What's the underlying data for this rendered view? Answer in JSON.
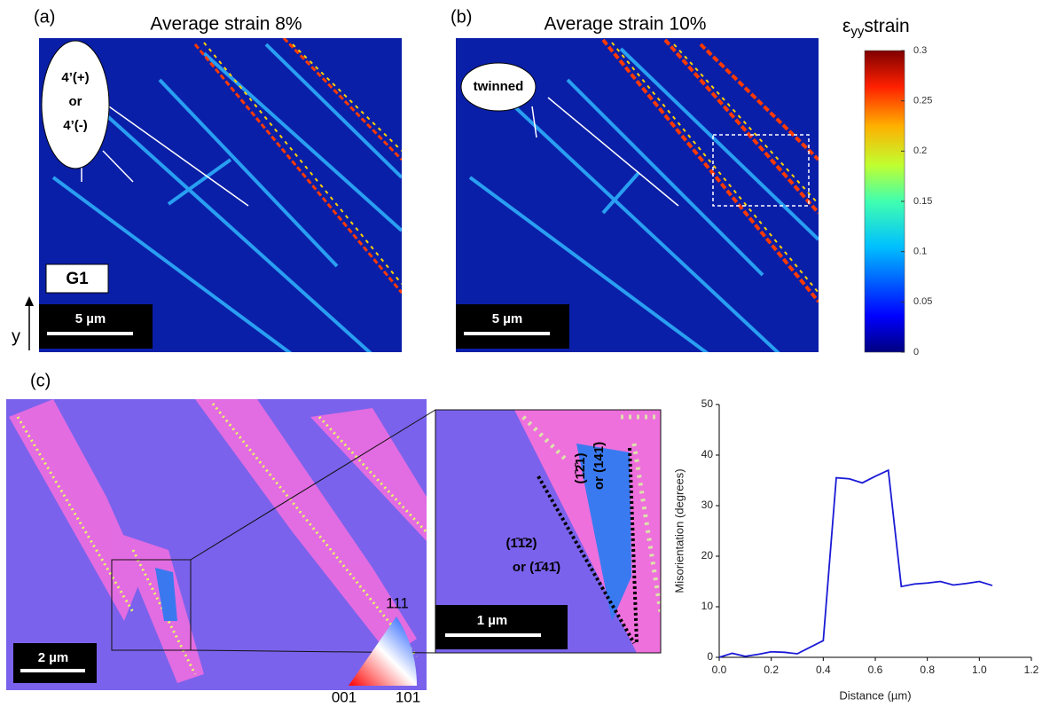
{
  "panels": {
    "a": {
      "label": "(a)",
      "title": "Average strain 8%",
      "callout": [
        "4’(+)",
        "or",
        "4’(-)"
      ],
      "grain": "G1",
      "scale": "5 µm",
      "axis": "y"
    },
    "b": {
      "label": "(b)",
      "title": "Average strain 10%",
      "callout": "twinned",
      "scale": "5 µm"
    },
    "colorbar": {
      "symbol": "ε",
      "subscript": "yy",
      "label": "strain",
      "lim": [
        0,
        0.3
      ],
      "ticks": [
        0,
        0.05,
        0.1,
        0.15,
        0.2,
        0.25,
        0.3
      ]
    },
    "c": {
      "label": "(c)",
      "scale": "2 µm",
      "inset_scale": "1 µm",
      "ipf": [
        "111",
        "001",
        "101"
      ],
      "planes": [
        [
          "(1̄2̄1)",
          "or (141̄)"
        ],
        [
          "(1̄1̄2)",
          "or (1̄41̄)"
        ]
      ]
    }
  },
  "chart_data": {
    "type": "line",
    "xlabel": "Distance (µm)",
    "ylabel": "Misorientation (degrees)",
    "x": [
      0,
      0.05,
      0.1,
      0.15,
      0.2,
      0.25,
      0.3,
      0.35,
      0.4,
      0.45,
      0.5,
      0.55,
      0.6,
      0.65,
      0.7,
      0.75,
      0.8,
      0.85,
      0.9,
      0.95,
      1.0,
      1.05
    ],
    "values": [
      0,
      0.8,
      0.2,
      0.6,
      1.1,
      1.0,
      0.7,
      2,
      3.3,
      35.5,
      35.3,
      34.5,
      35.8,
      37,
      14,
      14.5,
      14.7,
      15,
      14.3,
      14.6,
      15,
      14.2
    ],
    "color": "#1a1ad6",
    "xlim": [
      0,
      1.2
    ],
    "xticks": [
      {
        "value": 0,
        "label": "0.0"
      },
      0.2,
      0.4,
      0.6,
      0.8,
      {
        "value": 1,
        "label": "1.0"
      },
      1.2
    ],
    "ylim": [
      0,
      50
    ],
    "yticks": [
      0,
      10,
      20,
      30,
      40,
      50
    ]
  }
}
